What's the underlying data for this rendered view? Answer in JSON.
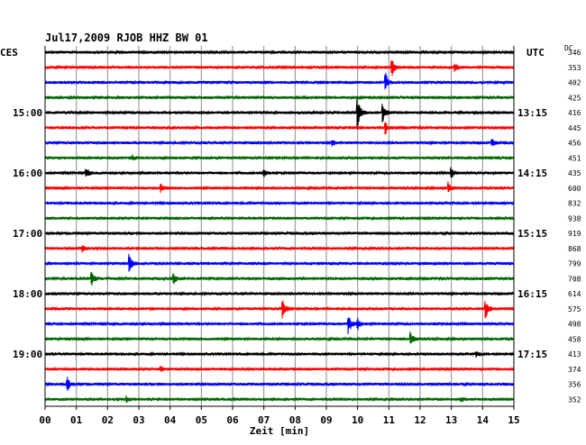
{
  "chart_data": {
    "type": "line",
    "title": "Jul17,2009  RJOB HHZ BW 01",
    "left_zone_label": "CES",
    "right_zone_label": "UTC",
    "dc_header": "DC",
    "xlabel": "Zeit [min]",
    "x_ticks": [
      "00",
      "01",
      "02",
      "03",
      "04",
      "05",
      "06",
      "07",
      "08",
      "09",
      "10",
      "11",
      "12",
      "13",
      "14",
      "15"
    ],
    "xlim": [
      0,
      15
    ],
    "grid": true,
    "trace_colors": [
      "#000000",
      "#ff0000",
      "#0000ff",
      "#006600"
    ],
    "local_time_labels": [
      {
        "trace": 4,
        "label": "15:00"
      },
      {
        "trace": 8,
        "label": "16:00"
      },
      {
        "trace": 12,
        "label": "17:00"
      },
      {
        "trace": 16,
        "label": "18:00"
      },
      {
        "trace": 20,
        "label": "19:00"
      }
    ],
    "utc_time_labels": [
      {
        "trace": 4,
        "label": "13:15"
      },
      {
        "trace": 8,
        "label": "14:15"
      },
      {
        "trace": 12,
        "label": "15:15"
      },
      {
        "trace": 16,
        "label": "16:15"
      },
      {
        "trace": 20,
        "label": "17:15"
      }
    ],
    "dc_offsets": [
      "346",
      "353",
      "402",
      "425",
      "416",
      "445",
      "456",
      "451",
      "435",
      "600",
      "832",
      "938",
      "919",
      "868",
      "799",
      "708",
      "614",
      "575",
      "498",
      "458",
      "413",
      "374",
      "356",
      "352"
    ],
    "events": [
      {
        "trace": 1,
        "minute": 11.1,
        "amplitude": 9
      },
      {
        "trace": 1,
        "minute": 13.1,
        "amplitude": 5
      },
      {
        "trace": 2,
        "minute": 10.9,
        "amplitude": 10
      },
      {
        "trace": 4,
        "minute": 10.0,
        "amplitude": 18
      },
      {
        "trace": 4,
        "minute": 10.8,
        "amplitude": 12
      },
      {
        "trace": 5,
        "minute": 10.9,
        "amplitude": 6
      },
      {
        "trace": 6,
        "minute": 9.2,
        "amplitude": 3
      },
      {
        "trace": 6,
        "minute": 14.3,
        "amplitude": 4
      },
      {
        "trace": 7,
        "minute": 2.8,
        "amplitude": 3
      },
      {
        "trace": 8,
        "minute": 1.3,
        "amplitude": 7
      },
      {
        "trace": 8,
        "minute": 7.0,
        "amplitude": 4
      },
      {
        "trace": 8,
        "minute": 13.0,
        "amplitude": 5
      },
      {
        "trace": 9,
        "minute": 3.7,
        "amplitude": 5
      },
      {
        "trace": 9,
        "minute": 12.9,
        "amplitude": 6
      },
      {
        "trace": 13,
        "minute": 1.2,
        "amplitude": 4
      },
      {
        "trace": 14,
        "minute": 2.7,
        "amplitude": 10
      },
      {
        "trace": 15,
        "minute": 1.5,
        "amplitude": 8
      },
      {
        "trace": 15,
        "minute": 4.1,
        "amplitude": 7
      },
      {
        "trace": 17,
        "minute": 7.6,
        "amplitude": 12
      },
      {
        "trace": 17,
        "minute": 14.1,
        "amplitude": 10
      },
      {
        "trace": 18,
        "minute": 9.7,
        "amplitude": 13
      },
      {
        "trace": 18,
        "minute": 10.0,
        "amplitude": 6
      },
      {
        "trace": 19,
        "minute": 11.7,
        "amplitude": 7
      },
      {
        "trace": 20,
        "minute": 13.8,
        "amplitude": 3
      },
      {
        "trace": 21,
        "minute": 3.7,
        "amplitude": 3
      },
      {
        "trace": 22,
        "minute": 0.7,
        "amplitude": 9
      },
      {
        "trace": 23,
        "minute": 2.6,
        "amplitude": 3
      },
      {
        "trace": 23,
        "minute": 13.3,
        "amplitude": 3
      }
    ],
    "noise_amplitude": 1.6
  }
}
